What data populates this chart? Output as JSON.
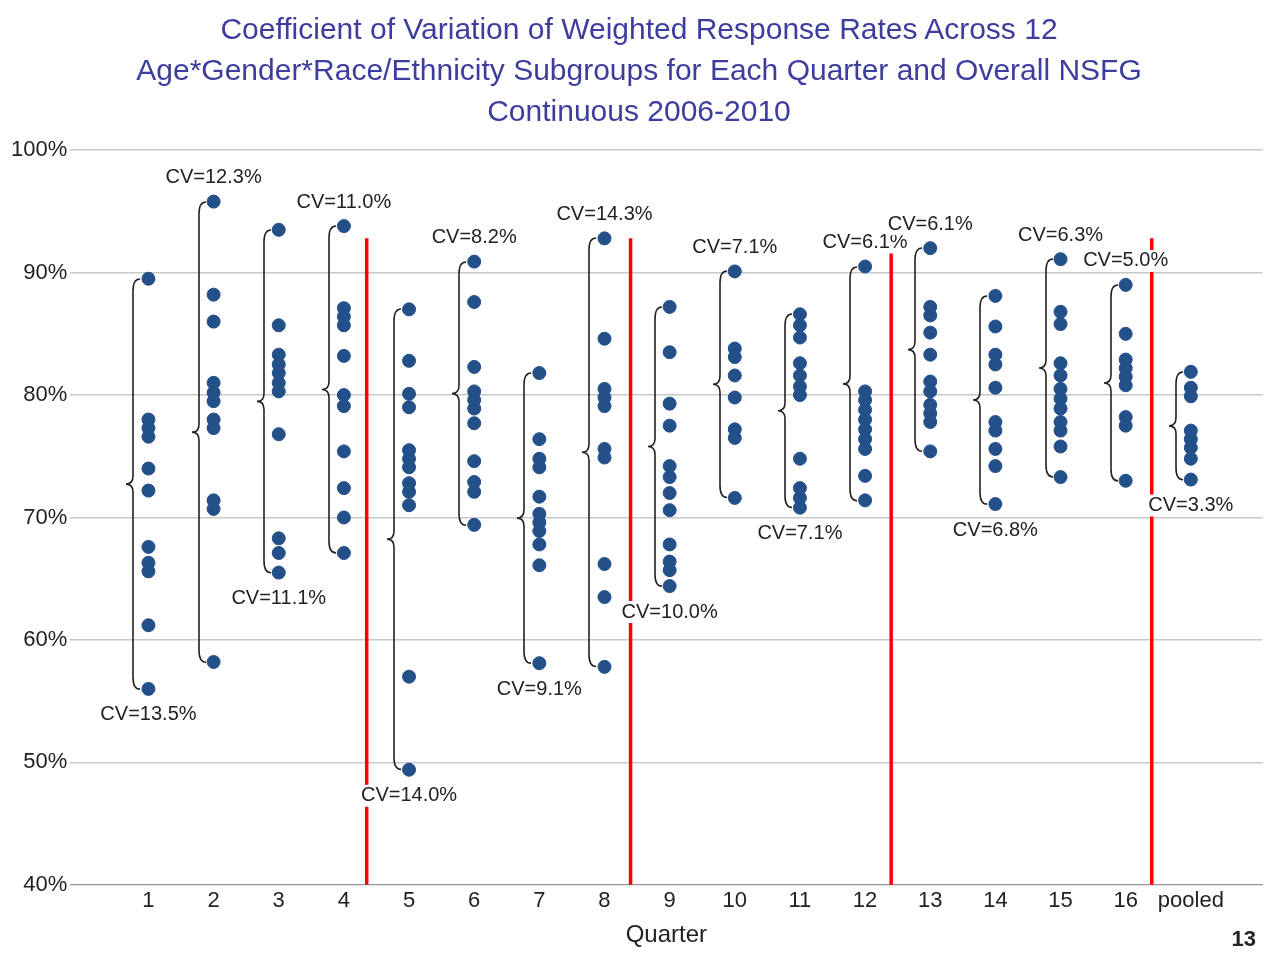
{
  "chart_data": {
    "type": "scatter",
    "title": "Coefficient of Variation of Weighted Response Rates Across 12 Age*Gender*Race/Ethnicity Subgroups for Each Quarter and Overall NSFG Continuous 2006-2010",
    "xlabel": "Quarter",
    "xlim": [
      -0.2,
      18.1
    ],
    "xticks": [
      1,
      2,
      3,
      4,
      5,
      6,
      7,
      8,
      9,
      10,
      11,
      12,
      13,
      14,
      15,
      16,
      {
        "value": 17,
        "label": "pooled"
      }
    ],
    "ylim": [
      40,
      100
    ],
    "yticks": [
      {
        "value": 40,
        "label": "40%"
      },
      {
        "value": 50,
        "label": "50%"
      },
      {
        "value": 60,
        "label": "60%"
      },
      {
        "value": 70,
        "label": "70%"
      },
      {
        "value": 80,
        "label": "80%"
      },
      {
        "value": 90,
        "label": "90%"
      },
      {
        "value": 100,
        "label": "100%"
      }
    ],
    "grid": "y",
    "legend": false,
    "marker": "circle",
    "series": [
      {
        "color": "#24508a",
        "x": [
          1,
          1,
          1,
          1,
          1,
          1,
          1,
          1,
          1,
          1,
          1,
          2,
          2,
          2,
          2,
          2,
          2,
          2,
          2,
          2,
          2,
          2,
          3,
          3,
          3,
          3,
          3,
          3,
          3,
          3,
          3,
          3,
          3,
          4,
          4,
          4,
          4,
          4,
          4,
          4,
          4,
          4,
          4,
          4,
          5,
          5,
          5,
          5,
          5,
          5,
          5,
          5,
          5,
          5,
          5,
          5,
          6,
          6,
          6,
          6,
          6,
          6,
          6,
          6,
          6,
          6,
          6,
          7,
          7,
          7,
          7,
          7,
          7,
          7,
          7,
          7,
          7,
          7,
          8,
          8,
          8,
          8,
          8,
          8,
          8,
          8,
          8,
          8,
          9,
          9,
          9,
          9,
          9,
          9,
          9,
          9,
          9,
          9,
          9,
          9,
          10,
          10,
          10,
          10,
          10,
          10,
          10,
          10,
          11,
          11,
          11,
          11,
          11,
          11,
          11,
          11,
          11,
          11,
          11,
          12,
          12,
          12,
          12,
          12,
          12,
          12,
          12,
          12,
          12,
          13,
          13,
          13,
          13,
          13,
          13,
          13,
          13,
          13,
          13,
          13,
          14,
          14,
          14,
          14,
          14,
          14,
          14,
          14,
          14,
          14,
          15,
          15,
          15,
          15,
          15,
          15,
          15,
          15,
          15,
          15,
          15,
          15,
          16,
          16,
          16,
          16,
          16,
          16,
          16,
          16,
          16,
          17,
          17,
          17,
          17,
          17,
          17,
          17,
          17
        ],
        "values": [
          89.5,
          78.0,
          77.3,
          76.6,
          74.0,
          72.2,
          67.6,
          66.3,
          65.6,
          61.2,
          56.0,
          95.8,
          88.2,
          86.0,
          81.0,
          80.2,
          79.5,
          78.0,
          77.3,
          71.4,
          70.7,
          58.2,
          93.5,
          85.7,
          83.3,
          82.5,
          81.8,
          81.0,
          80.3,
          76.8,
          68.3,
          67.1,
          65.5,
          93.8,
          87.1,
          86.4,
          85.7,
          83.2,
          80.0,
          79.1,
          75.4,
          72.4,
          70.0,
          67.1,
          87.0,
          82.8,
          80.1,
          79.0,
          75.5,
          74.8,
          74.1,
          72.8,
          72.1,
          71.0,
          57.0,
          49.4,
          90.9,
          87.6,
          82.3,
          80.3,
          79.6,
          78.9,
          77.7,
          74.6,
          72.9,
          72.1,
          69.4,
          81.8,
          76.4,
          74.8,
          74.1,
          71.7,
          70.3,
          69.6,
          68.9,
          67.8,
          66.1,
          58.1,
          92.8,
          84.6,
          80.5,
          79.8,
          79.1,
          75.6,
          74.9,
          66.2,
          63.5,
          57.8,
          87.2,
          83.5,
          79.3,
          77.5,
          74.2,
          73.3,
          72.0,
          70.6,
          67.8,
          66.4,
          65.7,
          64.4,
          90.1,
          83.8,
          83.1,
          81.6,
          79.8,
          77.2,
          76.5,
          71.6,
          86.6,
          85.7,
          84.7,
          82.6,
          81.6,
          80.7,
          80.0,
          74.8,
          72.4,
          71.6,
          70.8,
          90.5,
          80.3,
          79.6,
          78.8,
          78.0,
          77.2,
          76.4,
          75.6,
          73.4,
          71.4,
          92.0,
          87.2,
          86.5,
          85.1,
          83.3,
          81.1,
          80.3,
          79.2,
          78.5,
          77.8,
          75.4,
          88.1,
          85.6,
          83.3,
          82.5,
          80.6,
          77.8,
          77.1,
          75.6,
          74.2,
          71.1,
          91.1,
          86.8,
          85.8,
          82.6,
          81.6,
          80.5,
          79.7,
          78.9,
          77.8,
          77.1,
          75.8,
          73.3,
          89.0,
          85.0,
          82.9,
          82.2,
          81.5,
          80.8,
          78.2,
          77.5,
          73.0,
          81.9,
          80.6,
          79.9,
          77.1,
          76.4,
          75.7,
          74.8,
          73.1
        ]
      }
    ],
    "ref_lines": [
      {
        "axis": "x",
        "value": 4.35,
        "color": "#ff0000"
      },
      {
        "axis": "x",
        "value": 8.4,
        "color": "#ff0000"
      },
      {
        "axis": "x",
        "value": 12.4,
        "color": "#ff0000"
      },
      {
        "axis": "x",
        "value": 16.4,
        "color": "#ff0000"
      }
    ],
    "annotations": [
      {
        "text": "CV=13.5%",
        "x": 1,
        "y": 56.0
      },
      {
        "text": "CV=12.3%",
        "x": 2,
        "y": 95.8
      },
      {
        "text": "CV=11.1%",
        "x": 3,
        "y": 65.5
      },
      {
        "text": "CV=11.0%",
        "x": 4,
        "y": 93.8
      },
      {
        "text": "CV=14.0%",
        "x": 5,
        "y": 49.4
      },
      {
        "text": "CV=8.2%",
        "x": 6,
        "y": 90.9
      },
      {
        "text": "CV=9.1%",
        "x": 7,
        "y": 58.1
      },
      {
        "text": "CV=14.3%",
        "x": 8,
        "y": 92.8
      },
      {
        "text": "CV=10.0%",
        "x": 9,
        "y": 64.4
      },
      {
        "text": "CV=7.1%",
        "x": 10,
        "y": 90.1
      },
      {
        "text": "CV=7.1%",
        "x": 11,
        "y": 70.8
      },
      {
        "text": "CV=6.1%",
        "x": 12,
        "y": 90.5
      },
      {
        "text": "CV=6.1%",
        "x": 13,
        "y": 92.0
      },
      {
        "text": "CV=6.8%",
        "x": 14,
        "y": 71.1
      },
      {
        "text": "CV=6.3%",
        "x": 15,
        "y": 91.1
      },
      {
        "text": "CV=5.0%",
        "x": 16,
        "y": 89.0
      },
      {
        "text": "CV=3.3%",
        "x": 17,
        "y": 73.1
      },
      "13"
    ]
  }
}
